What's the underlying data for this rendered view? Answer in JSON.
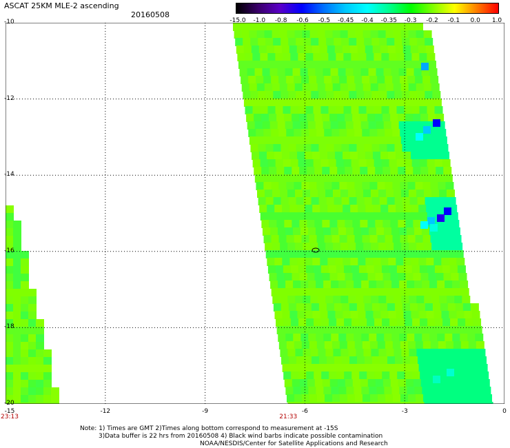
{
  "header": {
    "title": "ASCAT 25KM MLE-2 ascending",
    "date": "20160508"
  },
  "colorbar": {
    "labels": [
      "-15.0",
      "-1.0",
      "-0.8",
      "-0.6",
      "-0.5",
      "-0.45",
      "-0.4",
      "-0.35",
      "-0.3",
      "-0.2",
      "-0.1",
      "0.0",
      "1.0"
    ],
    "colors": [
      "#000000",
      "#3a006a",
      "#5a00c8",
      "#0000ff",
      "#0070ff",
      "#00c8ff",
      "#00ffff",
      "#00ff90",
      "#00ff00",
      "#80ff00",
      "#ffff00",
      "#ff8000",
      "#ff0000"
    ]
  },
  "map": {
    "x_axis": {
      "ticks": [
        "-15",
        "-12",
        "-9",
        "-6",
        "-3",
        "0"
      ]
    },
    "y_axis": {
      "ticks": [
        "-10",
        "-12",
        "-14",
        "-16",
        "-18",
        "-20"
      ]
    },
    "pass_times": [
      {
        "label": "23:13",
        "lon": -15
      },
      {
        "label": "21:33",
        "lon": -6.5
      }
    ]
  },
  "notes": {
    "line1": "Note: 1) Times are GMT 2)Times along bottom correspond to measurement at -15S",
    "line2": "3)Data buffer is 22 hrs from 20160508 4) Black wind barbs indicate possible contamination",
    "line3": "NOAA/NESDIS/Center for Satellite Applications and Research"
  }
}
